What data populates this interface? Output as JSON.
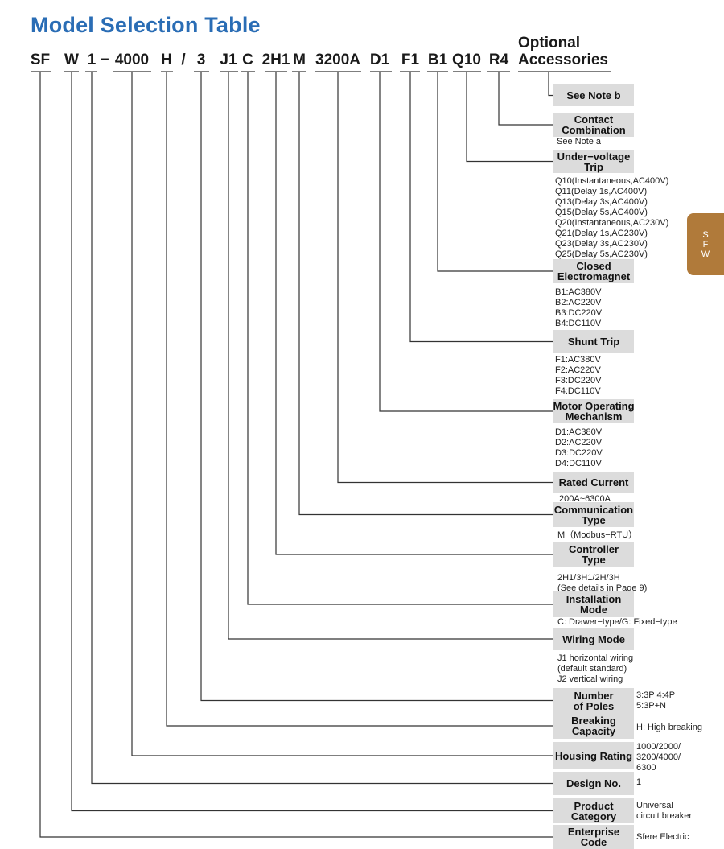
{
  "title": "Model Selection Table",
  "code_segments": [
    "SF",
    "W",
    "1",
    "−",
    "4000",
    "H",
    "/",
    "3",
    "J1",
    "C",
    "2H1",
    "M",
    "3200A",
    "D1",
    "F1",
    "B1",
    "Q10",
    "R4"
  ],
  "optional": [
    "Optional",
    "Accessories"
  ],
  "side_tab": [
    "S",
    "F",
    "W"
  ],
  "items": [
    {
      "label": [
        "See Note b"
      ],
      "notes": []
    },
    {
      "label": [
        "Contact",
        "Combination"
      ],
      "notes": [
        "See Note a"
      ]
    },
    {
      "label": [
        "Under−voltage",
        "Trip"
      ],
      "notes": [
        "Q10(Instantaneous,AC400V)",
        "Q11(Delay 1s,AC400V)",
        "Q13(Delay 3s,AC400V)",
        "Q15(Delay 5s,AC400V)",
        "Q20(Instantaneous,AC230V)",
        "Q21(Delay 1s,AC230V)",
        "Q23(Delay 3s,AC230V)",
        "Q25(Delay 5s,AC230V)"
      ]
    },
    {
      "label": [
        "Closed",
        "Electromagnet"
      ],
      "notes": [
        "B1:AC380V",
        "B2:AC220V",
        "B3:DC220V",
        "B4:DC110V"
      ]
    },
    {
      "label": [
        "Shunt Trip"
      ],
      "notes": [
        "F1:AC380V",
        "F2:AC220V",
        "F3:DC220V",
        "F4:DC110V"
      ]
    },
    {
      "label": [
        "Motor Operating",
        "Mechanism"
      ],
      "notes": [
        "D1:AC380V",
        "D2:AC220V",
        "D3:DC220V",
        "D4:DC110V"
      ]
    },
    {
      "label": [
        "Rated Current"
      ],
      "notes": [
        "200A~6300A"
      ]
    },
    {
      "label": [
        "Communication",
        "Type"
      ],
      "notes": [
        "M（Modbus−RTU）"
      ]
    },
    {
      "label": [
        "Controller",
        "Type"
      ],
      "notes": [
        "2H1/3H1/2H/3H",
        "(See details in Page 9)"
      ]
    },
    {
      "label": [
        "Installation",
        "Mode"
      ],
      "notes": [
        "C: Drawer−type/G: Fixed−type"
      ]
    },
    {
      "label": [
        "Wiring Mode"
      ],
      "notes": [
        "J1 horizontal wiring",
        "(default standard)",
        "J2 vertical wiring"
      ]
    },
    {
      "label": [
        "Number",
        "of Poles"
      ],
      "notes": [
        "3:3P  4:4P",
        "5:3P+N"
      ]
    },
    {
      "label": [
        "Breaking",
        "Capacity"
      ],
      "notes": [
        "H: High breaking"
      ]
    },
    {
      "label": [
        "Housing Rating"
      ],
      "notes": [
        "1000/2000/",
        "3200/4000/",
        "6300"
      ]
    },
    {
      "label": [
        "Design No."
      ],
      "notes": [
        "1"
      ]
    },
    {
      "label": [
        "Product",
        "Category"
      ],
      "notes": [
        "Universal",
        "circuit breaker"
      ]
    },
    {
      "label": [
        "Enterprise",
        "Code"
      ],
      "notes": [
        "Sfere Electric"
      ]
    }
  ]
}
